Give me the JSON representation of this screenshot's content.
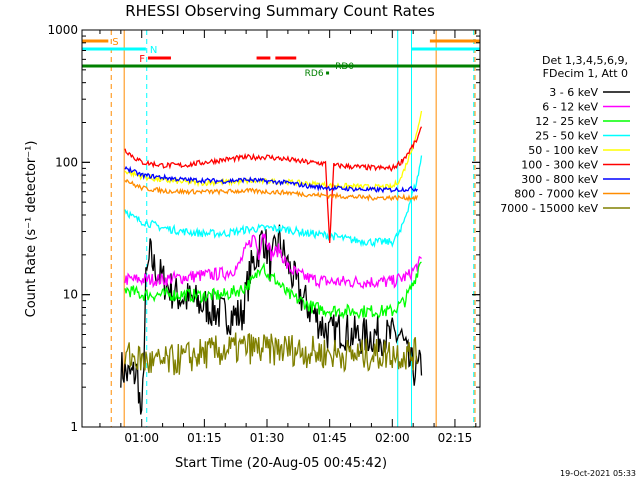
{
  "chart_data": {
    "type": "line",
    "title": "RHESSI Observing Summary Count Rates",
    "xlabel": "Start Time (20-Aug-05 00:45:42)",
    "ylabel": "Count Rate (s⁻¹ detector⁻¹)",
    "yscale": "log",
    "ylim": [
      1,
      1000
    ],
    "xlim_minutes": [
      45.7,
      141
    ],
    "x_ticks": [
      {
        "m": 60,
        "label": "01:00"
      },
      {
        "m": 75,
        "label": "01:15"
      },
      {
        "m": 90,
        "label": "01:30"
      },
      {
        "m": 105,
        "label": "01:45"
      },
      {
        "m": 120,
        "label": "02:00"
      },
      {
        "m": 135,
        "label": "02:15"
      }
    ],
    "y_ticks": [
      {
        "v": 1,
        "label": "1"
      },
      {
        "v": 10,
        "label": "10"
      },
      {
        "v": 100,
        "label": "100"
      },
      {
        "v": 1000,
        "label": "1000"
      }
    ],
    "legend": {
      "header": [
        "Det 1,3,4,5,6,9,",
        "FDecim 1, Att 0"
      ],
      "entries": [
        {
          "label": "3 - 6 keV",
          "color": "#000000"
        },
        {
          "label": "6 - 12 keV",
          "color": "#ff00ff"
        },
        {
          "label": "12 - 25 keV",
          "color": "#00ff00"
        },
        {
          "label": "25 - 50 keV",
          "color": "#00ffff"
        },
        {
          "label": "50 - 100 keV",
          "color": "#ffff00"
        },
        {
          "label": "100 - 300 keV",
          "color": "#ff0000"
        },
        {
          "label": "300 - 800 keV",
          "color": "#0000ff"
        },
        {
          "label": "800 - 7000 keV",
          "color": "#ff8c00"
        },
        {
          "label": "7000 - 15000 keV",
          "color": "#808000"
        }
      ]
    },
    "series": [
      {
        "name": "3 - 6 keV",
        "color": "#000000",
        "noise": 0.6,
        "points": [
          [
            55,
            2.8
          ],
          [
            57,
            2.4
          ],
          [
            59,
            2.6
          ],
          [
            60,
            1.0
          ],
          [
            61,
            12
          ],
          [
            62,
            20
          ],
          [
            63,
            16
          ],
          [
            65,
            13
          ],
          [
            68,
            10
          ],
          [
            72,
            9
          ],
          [
            76,
            8
          ],
          [
            80,
            7
          ],
          [
            84,
            7
          ],
          [
            86,
            15
          ],
          [
            88,
            22
          ],
          [
            89,
            28
          ],
          [
            90,
            22
          ],
          [
            91,
            16
          ],
          [
            92,
            22
          ],
          [
            93,
            26
          ],
          [
            94,
            20
          ],
          [
            96,
            14
          ],
          [
            98,
            10
          ],
          [
            100,
            8
          ],
          [
            103,
            6
          ],
          [
            105,
            5
          ],
          [
            108,
            5.5
          ],
          [
            110,
            5
          ],
          [
            113,
            4.8
          ],
          [
            116,
            5
          ],
          [
            119,
            4.8
          ],
          [
            122,
            5
          ],
          [
            124,
            3
          ],
          [
            126,
            2.6
          ],
          [
            127,
            3
          ]
        ]
      },
      {
        "name": "6 - 12 keV",
        "color": "#ff00ff",
        "noise": 0.2,
        "points": [
          [
            56,
            13
          ],
          [
            60,
            13
          ],
          [
            65,
            13
          ],
          [
            70,
            13.5
          ],
          [
            75,
            14
          ],
          [
            80,
            14.5
          ],
          [
            83,
            16
          ],
          [
            85,
            22
          ],
          [
            87,
            28
          ],
          [
            88,
            20
          ],
          [
            89,
            30
          ],
          [
            90,
            26
          ],
          [
            91,
            20
          ],
          [
            93,
            22
          ],
          [
            95,
            16
          ],
          [
            98,
            14
          ],
          [
            101,
            13
          ],
          [
            105,
            12.5
          ],
          [
            110,
            12.5
          ],
          [
            115,
            12.5
          ],
          [
            120,
            12.5
          ],
          [
            124,
            14
          ],
          [
            127,
            18
          ]
        ]
      },
      {
        "name": "12 - 25 keV",
        "color": "#00ff00",
        "noise": 0.2,
        "points": [
          [
            56,
            11
          ],
          [
            60,
            10
          ],
          [
            65,
            10
          ],
          [
            70,
            10
          ],
          [
            75,
            9.8
          ],
          [
            80,
            10
          ],
          [
            84,
            11
          ],
          [
            87,
            13
          ],
          [
            89,
            18
          ],
          [
            90,
            14
          ],
          [
            92,
            13
          ],
          [
            95,
            10
          ],
          [
            98,
            9
          ],
          [
            101,
            8
          ],
          [
            105,
            7.6
          ],
          [
            110,
            7.5
          ],
          [
            115,
            7.5
          ],
          [
            120,
            7.5
          ],
          [
            123,
            9
          ],
          [
            125,
            12
          ],
          [
            127,
            19
          ]
        ]
      },
      {
        "name": "25 - 50 keV",
        "color": "#00ffff",
        "noise": 0.12,
        "points": [
          [
            56,
            44
          ],
          [
            58,
            38
          ],
          [
            60,
            36
          ],
          [
            65,
            32
          ],
          [
            70,
            30
          ],
          [
            75,
            29
          ],
          [
            80,
            29
          ],
          [
            85,
            31
          ],
          [
            90,
            32
          ],
          [
            95,
            31
          ],
          [
            100,
            29
          ],
          [
            105,
            28
          ],
          [
            110,
            26
          ],
          [
            115,
            25
          ],
          [
            120,
            25
          ],
          [
            122,
            30
          ],
          [
            124,
            48
          ],
          [
            126,
            75
          ],
          [
            127,
            110
          ]
        ]
      },
      {
        "name": "50 - 100 keV",
        "color": "#ffff00",
        "noise": 0.08,
        "points": [
          [
            56,
            86
          ],
          [
            60,
            78
          ],
          [
            65,
            73
          ],
          [
            70,
            71
          ],
          [
            75,
            70
          ],
          [
            80,
            71
          ],
          [
            85,
            72
          ],
          [
            90,
            72
          ],
          [
            95,
            71
          ],
          [
            100,
            69
          ],
          [
            105,
            67
          ],
          [
            110,
            66
          ],
          [
            115,
            65
          ],
          [
            120,
            65
          ],
          [
            122,
            75
          ],
          [
            124,
            110
          ],
          [
            126,
            170
          ],
          [
            127,
            250
          ]
        ]
      },
      {
        "name": "100 - 300 keV",
        "color": "#ff0000",
        "noise": 0.08,
        "points": [
          [
            56,
            125
          ],
          [
            58,
            110
          ],
          [
            60,
            100
          ],
          [
            65,
            95
          ],
          [
            70,
            95
          ],
          [
            75,
            100
          ],
          [
            80,
            105
          ],
          [
            85,
            109
          ],
          [
            90,
            110
          ],
          [
            95,
            105
          ],
          [
            100,
            100
          ],
          [
            104,
            98
          ],
          [
            105,
            25
          ],
          [
            106,
            95
          ],
          [
            110,
            93
          ],
          [
            115,
            91
          ],
          [
            120,
            90
          ],
          [
            122,
            100
          ],
          [
            124,
            120
          ],
          [
            126,
            150
          ],
          [
            127,
            180
          ]
        ]
      },
      {
        "name": "300 - 800 keV",
        "color": "#0000ff",
        "noise": 0.07,
        "points": [
          [
            56,
            92
          ],
          [
            58,
            85
          ],
          [
            60,
            80
          ],
          [
            65,
            77
          ],
          [
            70,
            74
          ],
          [
            75,
            73
          ],
          [
            80,
            72
          ],
          [
            85,
            74
          ],
          [
            90,
            72
          ],
          [
            95,
            70
          ],
          [
            100,
            66
          ],
          [
            105,
            64
          ],
          [
            110,
            63
          ],
          [
            115,
            62
          ],
          [
            120,
            62
          ],
          [
            124,
            63
          ],
          [
            126,
            63
          ]
        ]
      },
      {
        "name": "800 - 7000 keV",
        "color": "#ff8c00",
        "noise": 0.07,
        "points": [
          [
            56,
            75
          ],
          [
            58,
            68
          ],
          [
            60,
            64
          ],
          [
            65,
            61
          ],
          [
            70,
            60
          ],
          [
            75,
            60
          ],
          [
            80,
            60
          ],
          [
            85,
            61
          ],
          [
            90,
            60
          ],
          [
            95,
            59
          ],
          [
            100,
            57
          ],
          [
            105,
            56
          ],
          [
            110,
            55
          ],
          [
            115,
            54
          ],
          [
            120,
            54
          ],
          [
            124,
            54
          ],
          [
            126,
            54
          ]
        ]
      },
      {
        "name": "7000 - 15000 keV",
        "color": "#808000",
        "noise": 0.5,
        "points": [
          [
            56,
            3.5
          ],
          [
            60,
            3.2
          ],
          [
            63,
            3.0
          ],
          [
            66,
            3.1
          ],
          [
            70,
            3.3
          ],
          [
            75,
            3.6
          ],
          [
            80,
            3.8
          ],
          [
            85,
            4.0
          ],
          [
            90,
            3.8
          ],
          [
            95,
            3.9
          ],
          [
            100,
            3.7
          ],
          [
            105,
            3.6
          ],
          [
            110,
            3.5
          ],
          [
            115,
            3.5
          ],
          [
            120,
            3.6
          ],
          [
            124,
            3.5
          ],
          [
            126,
            3.6
          ]
        ]
      }
    ],
    "flag_bars": [
      {
        "label": "S",
        "color": "#ff8c00",
        "start": 45.7,
        "end": 52,
        "level": 0
      },
      {
        "label": "",
        "color": "#ff8c00",
        "start": 129,
        "end": 141,
        "level": 0
      },
      {
        "label": "N",
        "color": "#00ffff",
        "start": 45.7,
        "end": 61,
        "level": 1
      },
      {
        "label": "",
        "color": "#00ffff",
        "start": 124.5,
        "end": 141,
        "level": 1
      },
      {
        "label": "F",
        "color": "#ff0000",
        "start": 61.5,
        "end": 67,
        "level": 2
      },
      {
        "label": "",
        "color": "#ff0000",
        "start": 87.5,
        "end": 90.8,
        "level": 2
      },
      {
        "label": "",
        "color": "#ff0000",
        "start": 92,
        "end": 97,
        "level": 2
      },
      {
        "label": "",
        "color": "#008000",
        "start": 45.7,
        "end": 141,
        "level": 3
      }
    ],
    "rd_markers": [
      {
        "label": "RD0",
        "color": "#008000",
        "m": 105.6,
        "level": 3
      },
      {
        "label": "RD6",
        "color": "#008000",
        "m": 104.5,
        "level": 4
      }
    ],
    "vlines": [
      {
        "m": 52.7,
        "color": "#ff8c00",
        "dash": true
      },
      {
        "m": 55.8,
        "color": "#ff8c00",
        "dash": false
      },
      {
        "m": 61.2,
        "color": "#00ffff",
        "dash": true
      },
      {
        "m": 121.3,
        "color": "#00ffff",
        "dash": false
      },
      {
        "m": 124.6,
        "color": "#00ffff",
        "dash": false
      },
      {
        "m": 130.5,
        "color": "#ff8c00",
        "dash": false
      },
      {
        "m": 139.5,
        "color": "#00ffff",
        "dash": true
      },
      {
        "m": 139.8,
        "color": "#ff8c00",
        "dash": true
      }
    ]
  },
  "footer": {
    "date_stamp": "19-Oct-2021 05:33"
  }
}
